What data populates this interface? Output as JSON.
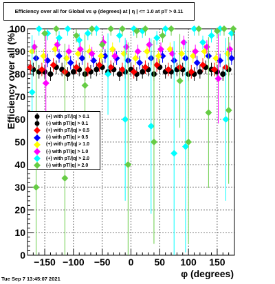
{
  "chart_data": {
    "type": "scatter",
    "title": "Efficiency over all for Global vs φ (degrees) at |  η | <= 1.0 at pT > 0.11",
    "xlabel": "φ (degrees)",
    "ylabel": "Efficiency over all (%)",
    "xlim": [
      -180,
      180
    ],
    "ylim": [
      0,
      100
    ],
    "xticks": [
      -150,
      -100,
      -50,
      0,
      50,
      100,
      150
    ],
    "yticks": [
      0,
      10,
      20,
      30,
      40,
      50,
      60,
      70,
      80,
      90,
      100
    ],
    "grid": true,
    "legend_position": "left-middle",
    "series": [
      {
        "name": "(+) with pT/|q| > 0.1",
        "color": "#000000",
        "marker": "circle",
        "x": [
          -170,
          -150,
          -130,
          -110,
          -90,
          -70,
          -50,
          -30,
          -10,
          10,
          30,
          50,
          70,
          90,
          110,
          130,
          150,
          170
        ],
        "y": [
          82,
          81,
          83,
          80,
          82,
          81,
          83,
          82,
          81,
          80,
          82,
          83,
          81,
          82,
          80,
          83,
          81,
          82
        ]
      },
      {
        "name": "(-) with pT/|q| > 0.1",
        "color": "#000000",
        "marker": "circle",
        "x": [
          -160,
          -140,
          -120,
          -100,
          -80,
          -60,
          -40,
          -20,
          0,
          20,
          40,
          60,
          80,
          100,
          120,
          140,
          160
        ],
        "y": [
          81,
          80,
          82,
          81,
          80,
          82,
          81,
          80,
          82,
          81,
          80,
          81,
          82,
          80,
          81,
          82,
          80
        ]
      },
      {
        "name": "(+) with pT/|q| > 0.5",
        "color": "#ff0000",
        "marker": "diamond",
        "x": [
          -175,
          -155,
          -135,
          -115,
          -95,
          -75,
          -55,
          -35,
          -15,
          5,
          25,
          45,
          65,
          85,
          105,
          125,
          145,
          165
        ],
        "y": [
          83,
          82,
          84,
          81,
          83,
          82,
          84,
          83,
          82,
          81,
          83,
          84,
          82,
          83,
          81,
          84,
          82,
          83
        ]
      },
      {
        "name": "(-) with pT/|q| > 0.5",
        "color": "#0000ff",
        "marker": "diamond",
        "x": [
          -165,
          -145,
          -125,
          -105,
          -85,
          -65,
          -45,
          -25,
          -5,
          15,
          35,
          55,
          75,
          95,
          115,
          135,
          155,
          175
        ],
        "y": [
          87,
          86,
          88,
          85,
          87,
          86,
          88,
          87,
          86,
          85,
          87,
          88,
          86,
          87,
          85,
          88,
          86,
          87
        ]
      },
      {
        "name": "(+) with pT/|q| > 1.0",
        "color": "#ffff00",
        "marker": "diamond",
        "x": [
          -172,
          -152,
          -132,
          -112,
          -92,
          -72,
          -52,
          -32,
          -12,
          8,
          28,
          48,
          68,
          88,
          108,
          128,
          148,
          168
        ],
        "y": [
          90,
          88,
          91,
          87,
          89,
          90,
          88,
          91,
          89,
          87,
          90,
          88,
          91,
          89,
          88,
          90,
          87,
          89
        ]
      },
      {
        "name": "(-) with pT/|q| > 1.0",
        "color": "#ff00ff",
        "marker": "diamond",
        "x": [
          -168,
          -148,
          -128,
          -108,
          -88,
          -68,
          -48,
          -28,
          -8,
          12,
          32,
          52,
          72,
          92,
          112,
          132,
          152,
          172
        ],
        "y": [
          92,
          76,
          93,
          90,
          91,
          89,
          94,
          88,
          92,
          90,
          93,
          91,
          89,
          94,
          90,
          92,
          78,
          91
        ]
      },
      {
        "name": "(+) with pT/|q| > 2.0",
        "color": "#00ffff",
        "marker": "diamond",
        "x": [
          -172,
          -160,
          -145,
          -125,
          -110,
          -90,
          -75,
          -60,
          -40,
          -20,
          -10,
          5,
          20,
          35,
          45,
          60,
          75,
          95,
          110,
          125,
          140,
          155,
          165,
          175
        ],
        "y": [
          72,
          100,
          98,
          96,
          100,
          95,
          98,
          100,
          80,
          97,
          60,
          100,
          99,
          57,
          96,
          100,
          45,
          48,
          100,
          94,
          97,
          100,
          60,
          98
        ]
      },
      {
        "name": "(-) with pT/|q| > 2.0",
        "color": "#66cc44",
        "marker": "diamond",
        "x": [
          -165,
          -150,
          -130,
          -115,
          -95,
          -80,
          -68,
          -50,
          -35,
          -15,
          -5,
          10,
          25,
          40,
          55,
          70,
          85,
          100,
          118,
          135,
          150,
          162,
          170,
          178
        ],
        "y": [
          30,
          98,
          100,
          34,
          97,
          75,
          100,
          93,
          100,
          100,
          40,
          99,
          100,
          50,
          97,
          100,
          77,
          50,
          100,
          63,
          99,
          100,
          64,
          100
        ]
      }
    ]
  },
  "footer": {
    "timestamp": "Tue Sep  7 13:45:07 2021"
  }
}
